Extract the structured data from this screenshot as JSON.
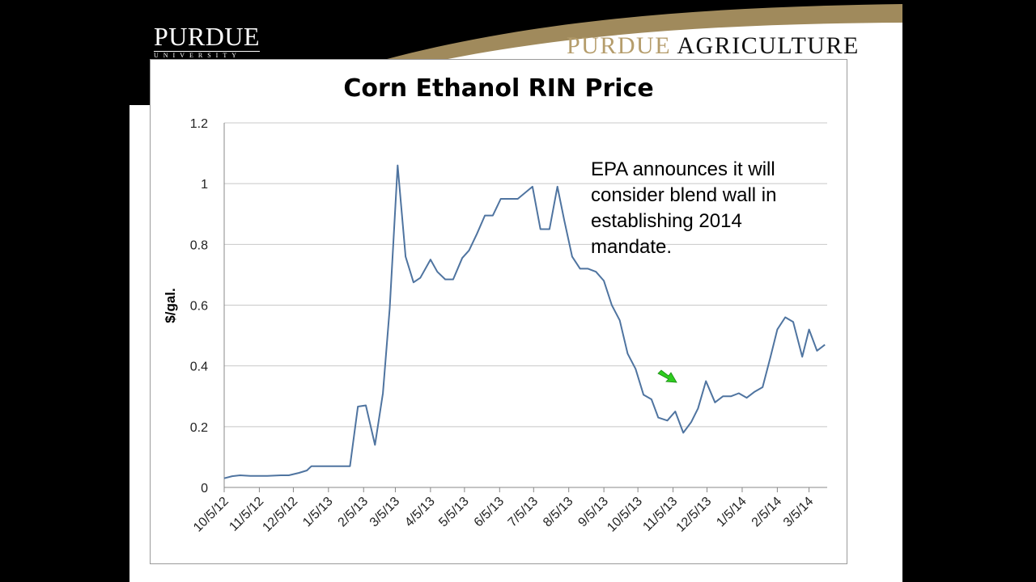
{
  "header": {
    "logo_main": "PURDUE",
    "logo_sub": "UNIVERSITY",
    "brand_gold": "PURDUE",
    "brand_dark": "AGRICULTURE",
    "colors": {
      "gold": "#b59d6c",
      "black": "#000000"
    }
  },
  "chart_data": {
    "type": "line",
    "title": "Corn Ethanol RIN Price",
    "xlabel": "",
    "ylabel": "$/gal.",
    "ylim": [
      0,
      1.2
    ],
    "yticks": [
      "0",
      "0.2",
      "0.4",
      "0.6",
      "0.8",
      "1",
      "1.2"
    ],
    "xlim": [
      "2012-10-05",
      "2014-03-21"
    ],
    "xticks": [
      {
        "date": "2012-10-05",
        "label": "10/5/12"
      },
      {
        "date": "2012-11-05",
        "label": "11/5/12"
      },
      {
        "date": "2012-12-05",
        "label": "12/5/12"
      },
      {
        "date": "2013-01-05",
        "label": "1/5/13"
      },
      {
        "date": "2013-02-05",
        "label": "2/5/13"
      },
      {
        "date": "2013-03-05",
        "label": "3/5/13"
      },
      {
        "date": "2013-04-05",
        "label": "4/5/13"
      },
      {
        "date": "2013-05-05",
        "label": "5/5/13"
      },
      {
        "date": "2013-06-05",
        "label": "6/5/13"
      },
      {
        "date": "2013-07-05",
        "label": "7/5/13"
      },
      {
        "date": "2013-08-05",
        "label": "8/5/13"
      },
      {
        "date": "2013-09-05",
        "label": "9/5/13"
      },
      {
        "date": "2013-10-05",
        "label": "10/5/13"
      },
      {
        "date": "2013-11-05",
        "label": "11/5/13"
      },
      {
        "date": "2013-12-05",
        "label": "12/5/13"
      },
      {
        "date": "2014-01-05",
        "label": "1/5/14"
      },
      {
        "date": "2014-02-05",
        "label": "2/5/14"
      },
      {
        "date": "2014-03-05",
        "label": "3/5/14"
      }
    ],
    "grid": "horizontal",
    "series": [
      {
        "color": "#4f74a0",
        "points": [
          [
            "2012-10-05",
            0.03
          ],
          [
            "2012-10-12",
            0.037
          ],
          [
            "2012-10-19",
            0.04
          ],
          [
            "2012-10-28",
            0.038
          ],
          [
            "2012-11-12",
            0.038
          ],
          [
            "2012-11-24",
            0.04
          ],
          [
            "2012-12-01",
            0.04
          ],
          [
            "2012-12-10",
            0.048
          ],
          [
            "2012-12-17",
            0.056
          ],
          [
            "2012-12-21",
            0.07
          ],
          [
            "2013-01-24",
            0.07
          ],
          [
            "2013-01-31",
            0.266
          ],
          [
            "2013-02-07",
            0.27
          ],
          [
            "2013-02-15",
            0.14
          ],
          [
            "2013-02-22",
            0.31
          ],
          [
            "2013-02-28",
            0.59
          ],
          [
            "2013-03-07",
            1.06
          ],
          [
            "2013-03-14",
            0.76
          ],
          [
            "2013-03-21",
            0.675
          ],
          [
            "2013-03-27",
            0.69
          ],
          [
            "2013-04-05",
            0.75
          ],
          [
            "2013-04-11",
            0.71
          ],
          [
            "2013-04-18",
            0.685
          ],
          [
            "2013-04-25",
            0.685
          ],
          [
            "2013-05-03",
            0.755
          ],
          [
            "2013-05-09",
            0.78
          ],
          [
            "2013-05-16",
            0.835
          ],
          [
            "2013-05-23",
            0.895
          ],
          [
            "2013-05-30",
            0.895
          ],
          [
            "2013-06-06",
            0.95
          ],
          [
            "2013-06-21",
            0.95
          ],
          [
            "2013-07-04",
            0.99
          ],
          [
            "2013-07-11",
            0.85
          ],
          [
            "2013-07-19",
            0.85
          ],
          [
            "2013-07-26",
            0.99
          ],
          [
            "2013-08-01",
            0.88
          ],
          [
            "2013-08-08",
            0.76
          ],
          [
            "2013-08-15",
            0.72
          ],
          [
            "2013-08-22",
            0.72
          ],
          [
            "2013-08-29",
            0.71
          ],
          [
            "2013-09-05",
            0.68
          ],
          [
            "2013-09-12",
            0.6
          ],
          [
            "2013-09-19",
            0.55
          ],
          [
            "2013-09-26",
            0.44
          ],
          [
            "2013-10-03",
            0.39
          ],
          [
            "2013-10-10",
            0.305
          ],
          [
            "2013-10-17",
            0.29
          ],
          [
            "2013-10-23",
            0.23
          ],
          [
            "2013-10-31",
            0.22
          ],
          [
            "2013-11-07",
            0.25
          ],
          [
            "2013-11-14",
            0.18
          ],
          [
            "2013-11-21",
            0.215
          ],
          [
            "2013-11-27",
            0.26
          ],
          [
            "2013-12-04",
            0.35
          ],
          [
            "2013-12-12",
            0.28
          ],
          [
            "2013-12-19",
            0.3
          ],
          [
            "2013-12-26",
            0.3
          ],
          [
            "2014-01-02",
            0.31
          ],
          [
            "2014-01-09",
            0.295
          ],
          [
            "2014-01-16",
            0.315
          ],
          [
            "2014-01-23",
            0.33
          ],
          [
            "2014-01-30",
            0.43
          ],
          [
            "2014-02-05",
            0.52
          ],
          [
            "2014-02-12",
            0.56
          ],
          [
            "2014-02-19",
            0.545
          ],
          [
            "2014-02-27",
            0.43
          ],
          [
            "2014-03-05",
            0.52
          ],
          [
            "2014-03-12",
            0.45
          ],
          [
            "2014-03-19",
            0.47
          ]
        ]
      }
    ],
    "annotation": {
      "lines": [
        "EPA announces it will",
        "consider blend wall in",
        "establishing 2014",
        "mandate."
      ],
      "arrow_icon": "green-arrow-down-right",
      "arrow_color": "#2ecc1f"
    }
  }
}
